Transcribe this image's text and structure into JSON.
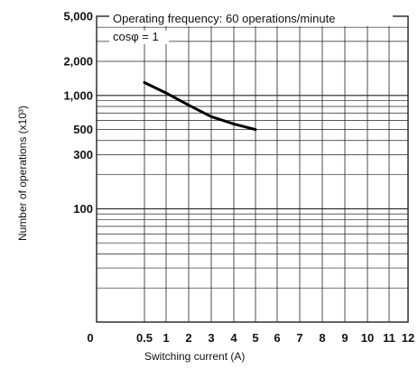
{
  "chart_data": {
    "type": "line",
    "ylabel": "Number of operations (x10³)",
    "xlabel": "Switching current (A)",
    "annotations": [
      "Operating frequency: 60 operations/minute",
      "cosφ = 1"
    ],
    "y_scale": "log",
    "ylim": [
      10,
      5000
    ],
    "y_ticks": [
      5000,
      2000,
      1000,
      500,
      300,
      100
    ],
    "y_tick_labels": [
      "5,000",
      "2,000",
      "1,000",
      "500",
      "300",
      "100"
    ],
    "x_ticks": [
      0,
      0.5,
      1,
      2,
      3,
      4,
      5,
      6,
      7,
      8,
      9,
      10,
      11,
      12
    ],
    "x_tick_labels": [
      "0",
      "0.5",
      "1",
      "2",
      "3",
      "4",
      "5",
      "6",
      "7",
      "8",
      "9",
      "10",
      "11",
      "12"
    ],
    "grid": true,
    "series": [
      {
        "x": [
          0.5,
          1,
          2,
          3,
          4,
          5
        ],
        "y": [
          1300,
          1050,
          820,
          650,
          560,
          500
        ],
        "color": "#000000"
      }
    ]
  }
}
